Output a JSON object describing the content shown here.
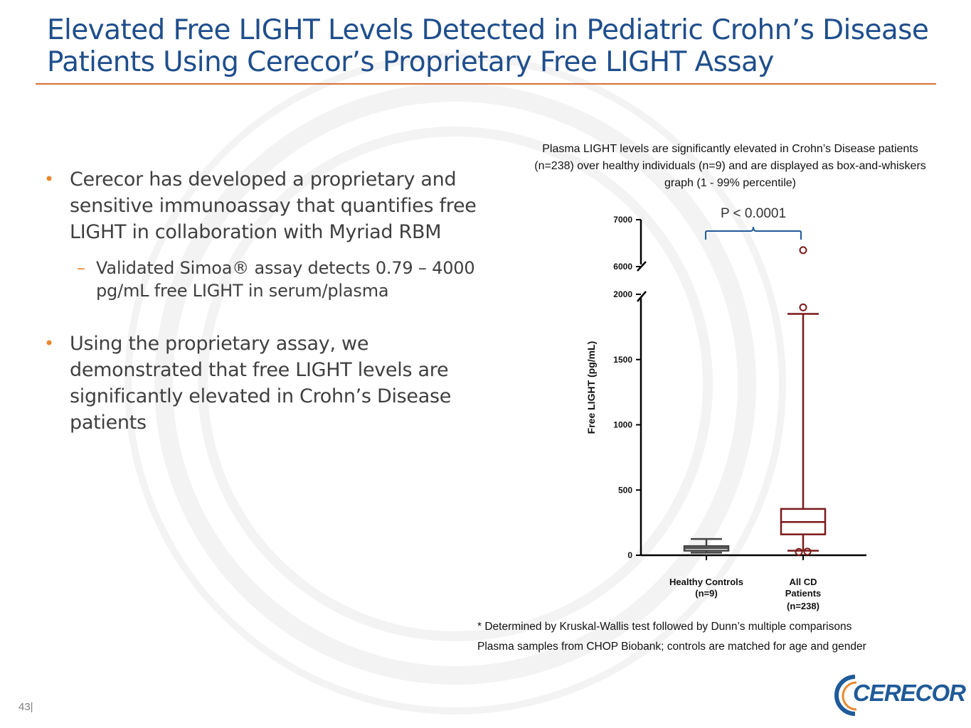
{
  "slide": {
    "title_line1": "Elevated Free LIGHT Levels Detected in Pediatric Crohn’s Disease",
    "title_line2": "Patients Using Cerecor’s Proprietary Free LIGHT Assay",
    "page_number": "43|"
  },
  "bullets": [
    {
      "text": "Cerecor has developed a proprietary and sensitive immunoassay that quantifies free LIGHT in collaboration with Myriad RBM"
    },
    {
      "sub": "Validated Simoa® assay detects 0.79 – 4000 pg/mL free LIGHT in serum/plasma"
    },
    {
      "text": "Using the proprietary assay, we demonstrated that free LIGHT levels are significantly elevated in Crohn’s Disease patients"
    }
  ],
  "caption": "Plasma LIGHT levels are significantly elevated in Crohn’s Disease patients (n=238) over healthy individuals (n=9) and are displayed as box-and-whiskers graph (1 - 99% percentile)",
  "footnotes": {
    "line1": "* Determined by Kruskal-Wallis test followed by Dunn’s multiple comparisons",
    "line2": "Plasma samples from CHOP Biobank; controls are matched for age and gender"
  },
  "logo": {
    "text": "CERECOR"
  },
  "colors": {
    "title": "#1f4e8c",
    "accent": "#e8892f",
    "rule": "#d9703a",
    "cd_box": "#7b1a1a",
    "control_box": "#444444",
    "bracket": "#1f5a99"
  },
  "chart_data": {
    "type": "box",
    "ylabel": "Free LIGHT (pg/mL)",
    "y_lower_segment": {
      "range": [
        0,
        2000
      ],
      "ticks": [
        0,
        500,
        1000,
        1500,
        2000
      ]
    },
    "y_upper_segment": {
      "range": [
        6000,
        7000
      ],
      "ticks": [
        6000,
        7000
      ]
    },
    "y_axis_break": [
      2000,
      6000
    ],
    "categories": [
      {
        "label": "Healthy Controls",
        "n_label": "(n=9)",
        "whisker_low": 20,
        "q1": 35,
        "median": 55,
        "q3": 70,
        "whisker_high": 125,
        "outliers": []
      },
      {
        "label": "All CD Patients",
        "n_label": "(n=238)",
        "whisker_low": 35,
        "q1": 160,
        "median": 255,
        "q3": 355,
        "whisker_high": 1850,
        "outliers": [
          25,
          28,
          1900,
          6350
        ]
      }
    ],
    "significance": {
      "label": "P <  0.0001",
      "between": [
        "Healthy Controls",
        "All CD Patients"
      ]
    }
  }
}
